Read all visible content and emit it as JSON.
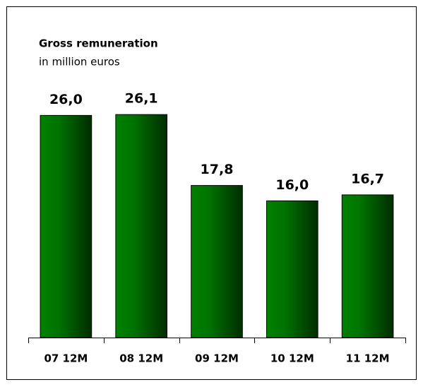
{
  "chart_data": {
    "type": "bar",
    "title": "Gross remuneration",
    "subtitle": "in million euros",
    "categories": [
      "07 12M",
      "08 12M",
      "09 12M",
      "10 12M",
      "11 12M"
    ],
    "values": [
      26.0,
      26.1,
      17.8,
      16.0,
      16.7
    ],
    "value_labels": [
      "26,0",
      "26,1",
      "17,8",
      "16,0",
      "16,7"
    ],
    "color": "#008000",
    "ylim": [
      0,
      30
    ]
  }
}
